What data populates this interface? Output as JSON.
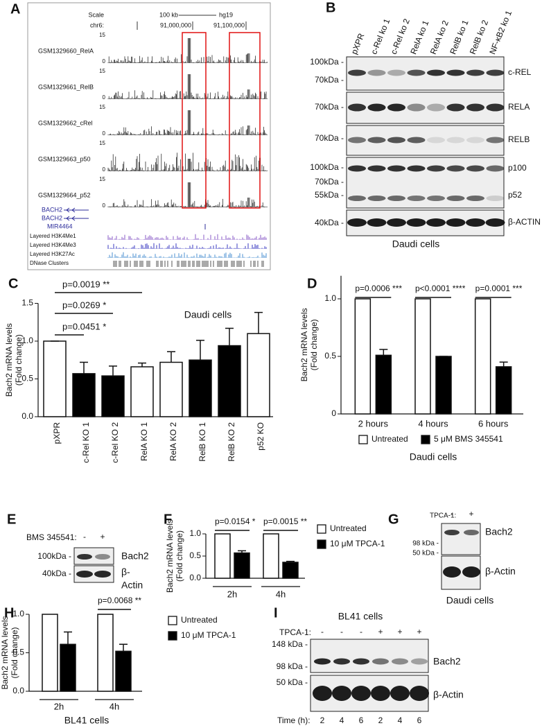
{
  "panel_a": {
    "label": "A",
    "scale": "Scale",
    "scale_size": "100 kb",
    "assembly": "hg19",
    "chrom": "chr6:",
    "positions": [
      "91,000,000",
      "91,100,000"
    ],
    "tracks": [
      {
        "name": "GSM1329660_RelA",
        "max": 15,
        "min": 0
      },
      {
        "name": "GSM1329661_RelB",
        "max": 15,
        "min": 0
      },
      {
        "name": "GSM1329662_cRel",
        "max": 15,
        "min": 0
      },
      {
        "name": "GSM1329663_p50",
        "max": 15,
        "min": 0
      },
      {
        "name": "GSM1329664_p52",
        "max": 15,
        "min": 0
      }
    ],
    "genes": [
      "BACH2",
      "BACH2",
      "MIR4464"
    ],
    "layered": [
      "Layered H3K4Me1",
      "Layered H3K4Me3",
      "Layered H3K27Ac",
      "DNase Clusters"
    ]
  },
  "panel_b": {
    "label": "B",
    "lanes": [
      "pXPR",
      "c-Rel ko 1",
      "c-Rel ko 2",
      "RelA ko 1",
      "RelA ko 2",
      "RelB ko 1",
      "RelB ko 2",
      "NF-κB2 ko 1"
    ],
    "markers": [
      "100kDa -",
      "70kDa -",
      "70kDa -",
      "70kDa -",
      "100kDa -",
      "70kDa -",
      "55kDa -",
      "40kDa -"
    ],
    "bands": [
      "c-REL",
      "RELA",
      "RELB",
      "p100",
      "p52",
      "β-ACTIN"
    ],
    "caption": "Daudi cells"
  },
  "panel_e": {
    "label": "E",
    "treatment": "BMS 345541:",
    "lanes": [
      "-",
      "+"
    ],
    "markers": [
      "100kDa -",
      "40kDa -"
    ],
    "bands": [
      "Bach2",
      "β-",
      "Actin"
    ]
  },
  "panel_g": {
    "label": "G",
    "treatment": "TPCA-1:",
    "lanes": [
      "-",
      "+"
    ],
    "markers": [
      "98 kDa -",
      "50 kDa -"
    ],
    "bands": [
      "Bach2",
      "β-Actin"
    ],
    "caption": "Daudi cells"
  },
  "panel_i": {
    "label": "I",
    "title": "BL41 cells",
    "treatment": "TPCA-1:",
    "lanes": [
      "-",
      "-",
      "-",
      "+",
      "+",
      "+"
    ],
    "markers": [
      "148 kDa -",
      "98 kDa -",
      "50 kDa -"
    ],
    "bands": [
      "Bach2",
      "β-Actin"
    ],
    "time_label": "Time (h):",
    "times": [
      2,
      4,
      6,
      2,
      4,
      6
    ]
  },
  "chart_data": [
    {
      "type": "bar",
      "label": "C",
      "ylabel": [
        "Bach2 mRNA levels",
        "(Fold change)"
      ],
      "annotation": "Daudi cells",
      "categories": [
        "pXPR",
        "c-Rel KO 1",
        "c-Rel KO 2",
        "RelA KO 1",
        "RelA KO 2",
        "RelB KO 1",
        "RelB KO 2",
        "p52 KO"
      ],
      "values": [
        1.0,
        0.57,
        0.54,
        0.66,
        0.72,
        0.75,
        0.94,
        1.1
      ],
      "errors": [
        0,
        0.15,
        0.13,
        0.05,
        0.14,
        0.26,
        0.23,
        0.28
      ],
      "colors": [
        "#ffffff",
        "#000000",
        "#000000",
        "#ffffff",
        "#ffffff",
        "#000000",
        "#000000",
        "#ffffff"
      ],
      "ylim": [
        0,
        1.5
      ],
      "yticks": [
        {
          "value": 0,
          "label": "0.0"
        },
        0.5,
        {
          "value": 1,
          "label": "1.0"
        },
        1.5
      ],
      "comparisons": [
        {
          "between": [
            "pXPR",
            "c-Rel KO 1"
          ],
          "label": "p=0.0451 *"
        },
        {
          "between": [
            "pXPR",
            "c-Rel KO 2"
          ],
          "label": "p=0.0269 *"
        },
        {
          "between": [
            "pXPR",
            "RelA KO 1"
          ],
          "label": "p=0.0019 **"
        }
      ]
    },
    {
      "type": "bar",
      "label": "D",
      "ylabel": [
        "Bach2 mRNA levels",
        "(Fold change)"
      ],
      "xlabel": "Daudi cells",
      "categories": [
        "2 hours",
        "4 hours",
        "6 hours"
      ],
      "series": [
        {
          "name": "Untreated",
          "color": "#ffffff",
          "values": [
            1,
            1,
            1
          ]
        },
        {
          "name": "5 μM BMS 345541",
          "color": "#000000",
          "values": [
            0.51,
            0.5,
            0.41
          ],
          "errors": [
            0.05,
            0,
            0.04
          ]
        }
      ],
      "ylim": [
        0,
        1.2
      ],
      "yticks": [
        0,
        0.5,
        {
          "value": 1,
          "label": "1.0"
        }
      ],
      "annotations": [
        {
          "category": "2 hours",
          "label": "p=0.0006 ***"
        },
        {
          "category": "4 hours",
          "label": "p<0.0001 ****"
        },
        {
          "category": "6 hours",
          "label": "p=0.0001 ***"
        }
      ]
    },
    {
      "type": "bar",
      "label": "F",
      "ylabel": [
        "Bach2 mRNA levels",
        "(Fold change)"
      ],
      "categories": [
        "2h",
        "4h"
      ],
      "series": [
        {
          "name": "Untreated",
          "color": "#ffffff",
          "values": [
            1,
            1
          ]
        },
        {
          "name": "10 μM TPCA-1",
          "color": "#000000",
          "values": [
            0.57,
            0.36
          ],
          "errors": [
            0.05,
            0.02
          ]
        }
      ],
      "ylim": [
        0,
        1
      ],
      "yticks": [
        {
          "value": 0,
          "label": "0.0"
        },
        0.5,
        {
          "value": 1,
          "label": "1.0"
        }
      ],
      "annotations": [
        {
          "category": "2h",
          "label": "p=0.0154 *"
        },
        {
          "category": "4h",
          "label": "p=0.0015 **"
        }
      ]
    },
    {
      "type": "bar",
      "label": "H",
      "ylabel": [
        "Bach2 mRNA levels",
        "(Fold change)"
      ],
      "xlabel": "BL41 cells",
      "categories": [
        "2h",
        "4h"
      ],
      "series": [
        {
          "name": "Untreated",
          "color": "#ffffff",
          "values": [
            1,
            1
          ]
        },
        {
          "name": "10 μM TPCA-1",
          "color": "#000000",
          "values": [
            0.61,
            0.52
          ],
          "errors": [
            0.16,
            0.09
          ]
        }
      ],
      "ylim": [
        0,
        1
      ],
      "yticks": [
        {
          "value": 0,
          "label": "0.0"
        },
        0.5,
        {
          "value": 1,
          "label": "1.0"
        }
      ],
      "annotations": [
        {
          "category": "4h",
          "label": "p=0.0068 **"
        }
      ]
    }
  ]
}
